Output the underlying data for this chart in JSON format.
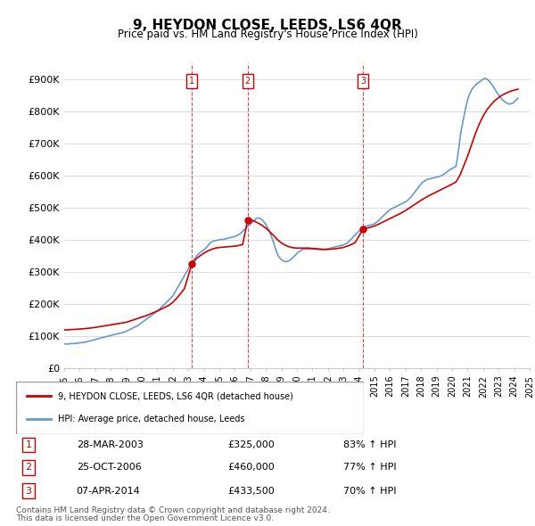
{
  "title": "9, HEYDON CLOSE, LEEDS, LS6 4QR",
  "subtitle": "Price paid vs. HM Land Registry's House Price Index (HPI)",
  "ylabel_format": "£{0}K",
  "yticks": [
    0,
    100000,
    200000,
    300000,
    400000,
    500000,
    600000,
    700000,
    800000,
    900000
  ],
  "ytick_labels": [
    "£0",
    "£100K",
    "£200K",
    "£300K",
    "£400K",
    "£500K",
    "£600K",
    "£700K",
    "£800K",
    "£900K"
  ],
  "ylim": [
    0,
    950000
  ],
  "red_line_color": "#cc0000",
  "blue_line_color": "#6699cc",
  "grid_color": "#cccccc",
  "transaction_lines": [
    {
      "x": 2003.23,
      "label": "1"
    },
    {
      "x": 2006.82,
      "label": "2"
    },
    {
      "x": 2014.27,
      "label": "3"
    }
  ],
  "transactions": [
    {
      "num": "1",
      "date": "28-MAR-2003",
      "price": "£325,000",
      "pct": "83% ↑ HPI"
    },
    {
      "num": "2",
      "date": "25-OCT-2006",
      "price": "£460,000",
      "pct": "77% ↑ HPI"
    },
    {
      "num": "3",
      "date": "07-APR-2014",
      "price": "£433,500",
      "pct": "70% ↑ HPI"
    }
  ],
  "legend_entries": [
    {
      "label": "9, HEYDON CLOSE, LEEDS, LS6 4QR (detached house)",
      "color": "#cc0000"
    },
    {
      "label": "HPI: Average price, detached house, Leeds",
      "color": "#6699cc"
    }
  ],
  "footer": [
    "Contains HM Land Registry data © Crown copyright and database right 2024.",
    "This data is licensed under the Open Government Licence v3.0."
  ],
  "hpi_data": {
    "years": [
      1995.0,
      1995.08,
      1995.17,
      1995.25,
      1995.33,
      1995.42,
      1995.5,
      1995.58,
      1995.67,
      1995.75,
      1995.83,
      1995.92,
      1996.0,
      1996.08,
      1996.17,
      1996.25,
      1996.33,
      1996.42,
      1996.5,
      1996.58,
      1996.67,
      1996.75,
      1996.83,
      1996.92,
      1997.0,
      1997.08,
      1997.17,
      1997.25,
      1997.33,
      1997.42,
      1997.5,
      1997.58,
      1997.67,
      1997.75,
      1997.83,
      1997.92,
      1998.0,
      1998.08,
      1998.17,
      1998.25,
      1998.33,
      1998.42,
      1998.5,
      1998.58,
      1998.67,
      1998.75,
      1998.83,
      1998.92,
      1999.0,
      1999.08,
      1999.17,
      1999.25,
      1999.33,
      1999.42,
      1999.5,
      1999.58,
      1999.67,
      1999.75,
      1999.83,
      1999.92,
      2000.0,
      2000.08,
      2000.17,
      2000.25,
      2000.33,
      2000.42,
      2000.5,
      2000.58,
      2000.67,
      2000.75,
      2000.83,
      2000.92,
      2001.0,
      2001.08,
      2001.17,
      2001.25,
      2001.33,
      2001.42,
      2001.5,
      2001.58,
      2001.67,
      2001.75,
      2001.83,
      2001.92,
      2002.0,
      2002.08,
      2002.17,
      2002.25,
      2002.33,
      2002.42,
      2002.5,
      2002.58,
      2002.67,
      2002.75,
      2002.83,
      2002.92,
      2003.0,
      2003.08,
      2003.17,
      2003.25,
      2003.33,
      2003.42,
      2003.5,
      2003.58,
      2003.67,
      2003.75,
      2003.83,
      2003.92,
      2004.0,
      2004.08,
      2004.17,
      2004.25,
      2004.33,
      2004.42,
      2004.5,
      2004.58,
      2004.67,
      2004.75,
      2004.83,
      2004.92,
      2005.0,
      2005.08,
      2005.17,
      2005.25,
      2005.33,
      2005.42,
      2005.5,
      2005.58,
      2005.67,
      2005.75,
      2005.83,
      2005.92,
      2006.0,
      2006.08,
      2006.17,
      2006.25,
      2006.33,
      2006.42,
      2006.5,
      2006.58,
      2006.67,
      2006.75,
      2006.83,
      2006.92,
      2007.0,
      2007.08,
      2007.17,
      2007.25,
      2007.33,
      2007.42,
      2007.5,
      2007.58,
      2007.67,
      2007.75,
      2007.83,
      2007.92,
      2008.0,
      2008.08,
      2008.17,
      2008.25,
      2008.33,
      2008.42,
      2008.5,
      2008.58,
      2008.67,
      2008.75,
      2008.83,
      2008.92,
      2009.0,
      2009.08,
      2009.17,
      2009.25,
      2009.33,
      2009.42,
      2009.5,
      2009.58,
      2009.67,
      2009.75,
      2009.83,
      2009.92,
      2010.0,
      2010.08,
      2010.17,
      2010.25,
      2010.33,
      2010.42,
      2010.5,
      2010.58,
      2010.67,
      2010.75,
      2010.83,
      2010.92,
      2011.0,
      2011.08,
      2011.17,
      2011.25,
      2011.33,
      2011.42,
      2011.5,
      2011.58,
      2011.67,
      2011.75,
      2011.83,
      2011.92,
      2012.0,
      2012.08,
      2012.17,
      2012.25,
      2012.33,
      2012.42,
      2012.5,
      2012.58,
      2012.67,
      2012.75,
      2012.83,
      2012.92,
      2013.0,
      2013.08,
      2013.17,
      2013.25,
      2013.33,
      2013.42,
      2013.5,
      2013.58,
      2013.67,
      2013.75,
      2013.83,
      2013.92,
      2014.0,
      2014.08,
      2014.17,
      2014.25,
      2014.33,
      2014.42,
      2014.5,
      2014.58,
      2014.67,
      2014.75,
      2014.83,
      2014.92,
      2015.0,
      2015.08,
      2015.17,
      2015.25,
      2015.33,
      2015.42,
      2015.5,
      2015.58,
      2015.67,
      2015.75,
      2015.83,
      2015.92,
      2016.0,
      2016.08,
      2016.17,
      2016.25,
      2016.33,
      2016.42,
      2016.5,
      2016.58,
      2016.67,
      2016.75,
      2016.83,
      2016.92,
      2017.0,
      2017.08,
      2017.17,
      2017.25,
      2017.33,
      2017.42,
      2017.5,
      2017.58,
      2017.67,
      2017.75,
      2017.83,
      2017.92,
      2018.0,
      2018.08,
      2018.17,
      2018.25,
      2018.33,
      2018.42,
      2018.5,
      2018.58,
      2018.67,
      2018.75,
      2018.83,
      2018.92,
      2019.0,
      2019.08,
      2019.17,
      2019.25,
      2019.33,
      2019.42,
      2019.5,
      2019.58,
      2019.67,
      2019.75,
      2019.83,
      2019.92,
      2020.0,
      2020.08,
      2020.17,
      2020.25,
      2020.33,
      2020.42,
      2020.5,
      2020.58,
      2020.67,
      2020.75,
      2020.83,
      2020.92,
      2021.0,
      2021.08,
      2021.17,
      2021.25,
      2021.33,
      2021.42,
      2021.5,
      2021.58,
      2021.67,
      2021.75,
      2021.83,
      2021.92,
      2022.0,
      2022.08,
      2022.17,
      2022.25,
      2022.33,
      2022.42,
      2022.5,
      2022.58,
      2022.67,
      2022.75,
      2022.83,
      2022.92,
      2023.0,
      2023.08,
      2023.17,
      2023.25,
      2023.33,
      2023.42,
      2023.5,
      2023.58,
      2023.67,
      2023.75,
      2023.83,
      2023.92,
      2024.0,
      2024.08,
      2024.17,
      2024.25
    ],
    "values": [
      76000,
      75500,
      75000,
      75500,
      76000,
      76500,
      77000,
      76500,
      77000,
      77500,
      78000,
      78500,
      79000,
      79500,
      80000,
      80500,
      81000,
      82000,
      83000,
      84000,
      85000,
      86000,
      87000,
      88000,
      89000,
      90000,
      91000,
      92500,
      94000,
      95000,
      96000,
      97000,
      98000,
      99000,
      100000,
      101000,
      102000,
      103000,
      104000,
      105000,
      106000,
      107000,
      108000,
      109000,
      110000,
      111000,
      112000,
      113000,
      115000,
      117000,
      119000,
      121000,
      123000,
      125000,
      127000,
      129000,
      131000,
      133000,
      136000,
      139000,
      142000,
      145000,
      148000,
      151000,
      154000,
      157000,
      160000,
      163000,
      166000,
      169000,
      172000,
      175000,
      178000,
      181000,
      185000,
      189000,
      193000,
      197000,
      201000,
      205000,
      209000,
      213000,
      217000,
      221000,
      225000,
      232000,
      239000,
      246000,
      253000,
      260000,
      267000,
      274000,
      281000,
      288000,
      295000,
      302000,
      310000,
      317000,
      325000,
      332000,
      337000,
      342000,
      347000,
      352000,
      357000,
      360000,
      363000,
      365000,
      368000,
      372000,
      376000,
      381000,
      386000,
      391000,
      393000,
      395000,
      396000,
      397000,
      398000,
      399000,
      400000,
      401000,
      401000,
      401000,
      402000,
      403000,
      404000,
      405000,
      406000,
      407000,
      408000,
      409000,
      410000,
      412000,
      414000,
      416000,
      419000,
      422000,
      426000,
      430000,
      434000,
      438000,
      442000,
      445000,
      448000,
      452000,
      456000,
      460000,
      464000,
      467000,
      468000,
      467000,
      465000,
      462000,
      458000,
      453000,
      447000,
      440000,
      432000,
      423000,
      413000,
      402000,
      390000,
      377000,
      365000,
      355000,
      347000,
      342000,
      338000,
      335000,
      333000,
      332000,
      332000,
      333000,
      335000,
      338000,
      341000,
      345000,
      349000,
      353000,
      357000,
      361000,
      364000,
      367000,
      369000,
      370000,
      371000,
      371000,
      371000,
      371000,
      371000,
      371000,
      371000,
      371000,
      371000,
      370000,
      370000,
      370000,
      369000,
      369000,
      369000,
      370000,
      370000,
      371000,
      372000,
      373000,
      374000,
      375000,
      376000,
      377000,
      378000,
      379000,
      380000,
      381000,
      382000,
      383000,
      384000,
      386000,
      388000,
      391000,
      394000,
      398000,
      402000,
      406000,
      411000,
      415000,
      419000,
      423000,
      427000,
      431000,
      435000,
      437000,
      439000,
      441000,
      443000,
      444000,
      445000,
      446000,
      447000,
      448000,
      450000,
      453000,
      456000,
      459000,
      463000,
      467000,
      471000,
      475000,
      479000,
      483000,
      487000,
      490000,
      493000,
      496000,
      498000,
      500000,
      502000,
      504000,
      506000,
      508000,
      510000,
      512000,
      514000,
      516000,
      518000,
      521000,
      524000,
      528000,
      532000,
      537000,
      542000,
      547000,
      553000,
      558000,
      564000,
      569000,
      574000,
      578000,
      581000,
      584000,
      586000,
      588000,
      589000,
      590000,
      591000,
      592000,
      593000,
      594000,
      595000,
      596000,
      597000,
      598000,
      600000,
      602000,
      605000,
      608000,
      611000,
      614000,
      617000,
      620000,
      622000,
      624000,
      626000,
      628000,
      650000,
      680000,
      710000,
      740000,
      760000,
      780000,
      800000,
      820000,
      835000,
      848000,
      858000,
      866000,
      872000,
      877000,
      881000,
      885000,
      888000,
      891000,
      894000,
      897000,
      900000,
      902000,
      902000,
      900000,
      897000,
      893000,
      888000,
      882000,
      876000,
      869000,
      863000,
      857000,
      851000,
      845000,
      840000,
      836000,
      832000,
      829000,
      826000,
      824000,
      823000,
      823000,
      824000,
      826000,
      829000,
      833000,
      837000,
      841000
    ]
  },
  "price_paid_data": {
    "years": [
      1995.0,
      1995.08,
      1995.25,
      1995.5,
      1995.75,
      1996.0,
      1996.25,
      1996.5,
      1996.75,
      1997.0,
      1997.25,
      1997.5,
      1997.75,
      1998.0,
      1998.25,
      1998.5,
      1998.75,
      1999.0,
      1999.25,
      1999.5,
      1999.75,
      2000.0,
      2000.25,
      2000.5,
      2000.75,
      2001.0,
      2001.25,
      2001.5,
      2001.75,
      2002.0,
      2002.25,
      2002.5,
      2002.75,
      2003.23,
      2003.5,
      2003.75,
      2004.0,
      2004.25,
      2004.5,
      2004.75,
      2005.0,
      2005.25,
      2005.5,
      2005.75,
      2006.0,
      2006.25,
      2006.5,
      2006.82,
      2007.0,
      2007.25,
      2007.5,
      2007.75,
      2008.0,
      2008.25,
      2008.5,
      2008.75,
      2009.0,
      2009.25,
      2009.5,
      2009.75,
      2010.0,
      2010.25,
      2010.5,
      2010.75,
      2011.0,
      2011.25,
      2011.5,
      2011.75,
      2012.0,
      2012.25,
      2012.5,
      2012.75,
      2013.0,
      2013.25,
      2013.5,
      2013.75,
      2014.27,
      2014.5,
      2014.75,
      2015.0,
      2015.25,
      2015.5,
      2015.75,
      2016.0,
      2016.25,
      2016.5,
      2016.75,
      2017.0,
      2017.25,
      2017.5,
      2017.75,
      2018.0,
      2018.25,
      2018.5,
      2018.75,
      2019.0,
      2019.25,
      2019.5,
      2019.75,
      2020.0,
      2020.25,
      2020.5,
      2020.75,
      2021.0,
      2021.25,
      2021.5,
      2021.75,
      2022.0,
      2022.25,
      2022.5,
      2022.75,
      2023.0,
      2023.25,
      2023.5,
      2023.75,
      2024.0,
      2024.25
    ],
    "values": [
      120000,
      119000,
      119500,
      120500,
      121000,
      122000,
      123000,
      124000,
      125500,
      127000,
      129000,
      131000,
      133000,
      135000,
      137000,
      139000,
      141000,
      143000,
      147000,
      151000,
      155000,
      159000,
      163000,
      168000,
      173000,
      178000,
      184000,
      190000,
      196000,
      205000,
      218000,
      232000,
      248000,
      325000,
      340000,
      350000,
      358000,
      365000,
      370000,
      374000,
      376000,
      377000,
      378000,
      379000,
      380000,
      382000,
      385000,
      460000,
      462000,
      458000,
      452000,
      445000,
      436000,
      425000,
      413000,
      400000,
      390000,
      383000,
      378000,
      375000,
      374000,
      374000,
      374000,
      374000,
      373000,
      372000,
      371000,
      370000,
      370000,
      371000,
      372000,
      374000,
      376000,
      380000,
      385000,
      391000,
      433500,
      436000,
      439000,
      443000,
      448000,
      454000,
      460000,
      466000,
      472000,
      478000,
      484000,
      491000,
      499000,
      507000,
      515000,
      523000,
      530000,
      537000,
      543000,
      549000,
      555000,
      561000,
      567000,
      573000,
      580000,
      600000,
      630000,
      660000,
      695000,
      730000,
      760000,
      785000,
      805000,
      820000,
      833000,
      843000,
      851000,
      857000,
      862000,
      866000,
      869000
    ]
  },
  "transaction_markers": [
    {
      "year": 2003.23,
      "value": 325000
    },
    {
      "year": 2006.82,
      "value": 460000
    },
    {
      "year": 2014.27,
      "value": 433500
    }
  ],
  "xmin": 1995.0,
  "xmax": 2025.0,
  "xtick_years": [
    1995,
    1996,
    1997,
    1998,
    1999,
    2000,
    2001,
    2002,
    2003,
    2004,
    2005,
    2006,
    2007,
    2008,
    2009,
    2010,
    2011,
    2012,
    2013,
    2014,
    2015,
    2016,
    2017,
    2018,
    2019,
    2020,
    2021,
    2022,
    2023,
    2024,
    2025
  ]
}
